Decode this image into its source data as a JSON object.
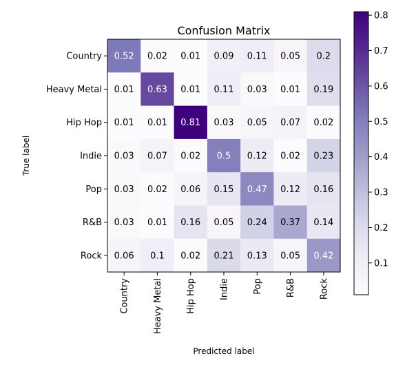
{
  "chart_data": {
    "type": "heatmap",
    "title": "Confusion Matrix",
    "xlabel": "Predicted label",
    "ylabel": "True label",
    "row_labels": [
      "Country",
      "Heavy Metal",
      "Hip Hop",
      "Indie",
      "Pop",
      "R&B",
      "Rock"
    ],
    "col_labels": [
      "Country",
      "Heavy Metal",
      "Hip Hop",
      "Indie",
      "Pop",
      "R&B",
      "Rock"
    ],
    "values": [
      [
        0.52,
        0.02,
        0.01,
        0.09,
        0.11,
        0.05,
        0.2
      ],
      [
        0.01,
        0.63,
        0.01,
        0.11,
        0.03,
        0.01,
        0.19
      ],
      [
        0.01,
        0.01,
        0.81,
        0.03,
        0.05,
        0.07,
        0.02
      ],
      [
        0.03,
        0.07,
        0.02,
        0.5,
        0.12,
        0.02,
        0.23
      ],
      [
        0.03,
        0.02,
        0.06,
        0.15,
        0.47,
        0.12,
        0.16
      ],
      [
        0.03,
        0.01,
        0.16,
        0.05,
        0.24,
        0.37,
        0.14
      ],
      [
        0.06,
        0.1,
        0.02,
        0.21,
        0.13,
        0.05,
        0.42
      ]
    ],
    "colormap": "Purples",
    "color_range": [
      0.01,
      0.81
    ],
    "colorbar_ticks": [
      0.1,
      0.2,
      0.3,
      0.4,
      0.5,
      0.6,
      0.7,
      0.8
    ],
    "colorbar_tick_labels": [
      "0.1",
      "0.2",
      "0.3",
      "0.4",
      "0.5",
      "0.6",
      "0.7",
      "0.8"
    ],
    "grid": false,
    "legend": "colorbar-right"
  }
}
